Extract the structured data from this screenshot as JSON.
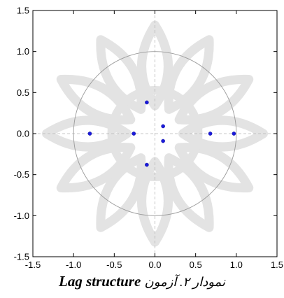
{
  "chart_data": {
    "type": "scatter",
    "title": "",
    "xlabel": "",
    "ylabel": "",
    "xlim": [
      -1.5,
      1.5
    ],
    "ylim": [
      -1.5,
      1.5
    ],
    "x_ticks": [
      "-1.5",
      "-1.0",
      "-0.5",
      "0.0",
      "0.5",
      "1.0",
      "1.5"
    ],
    "y_ticks": [
      "1.5",
      "1.0",
      "0.5",
      "0.0",
      "-0.5",
      "-1.0",
      "-1.5"
    ],
    "x_tick_values": [
      -1.5,
      -1.0,
      -0.5,
      0.0,
      0.5,
      1.0,
      1.5
    ],
    "y_tick_values": [
      1.5,
      1.0,
      0.5,
      0.0,
      -0.5,
      -1.0,
      -1.5
    ],
    "unit_circle_radius": 1.0,
    "reference_lines": {
      "x": 0,
      "y": 0
    },
    "grid": false,
    "series": [
      {
        "points": [
          {
            "x": 0.97,
            "y": 0.0
          },
          {
            "x": 0.68,
            "y": 0.0
          },
          {
            "x": -0.8,
            "y": 0.0
          },
          {
            "x": -0.26,
            "y": 0.0
          },
          {
            "x": -0.1,
            "y": 0.38
          },
          {
            "x": -0.1,
            "y": -0.38
          },
          {
            "x": 0.1,
            "y": 0.09
          },
          {
            "x": 0.1,
            "y": -0.09
          }
        ]
      }
    ],
    "colors": {
      "points": "#1a1adb",
      "circle": "#9a9a9a",
      "reference_lines": "#b5b5b5",
      "frame": "#000000"
    }
  },
  "caption": {
    "latin": "Lag structure",
    "persian": "نمودار ۲. آزمون"
  },
  "watermark": {
    "description_icon": "islamic-star-rosette-watermark",
    "color": "#e3e3e3"
  }
}
